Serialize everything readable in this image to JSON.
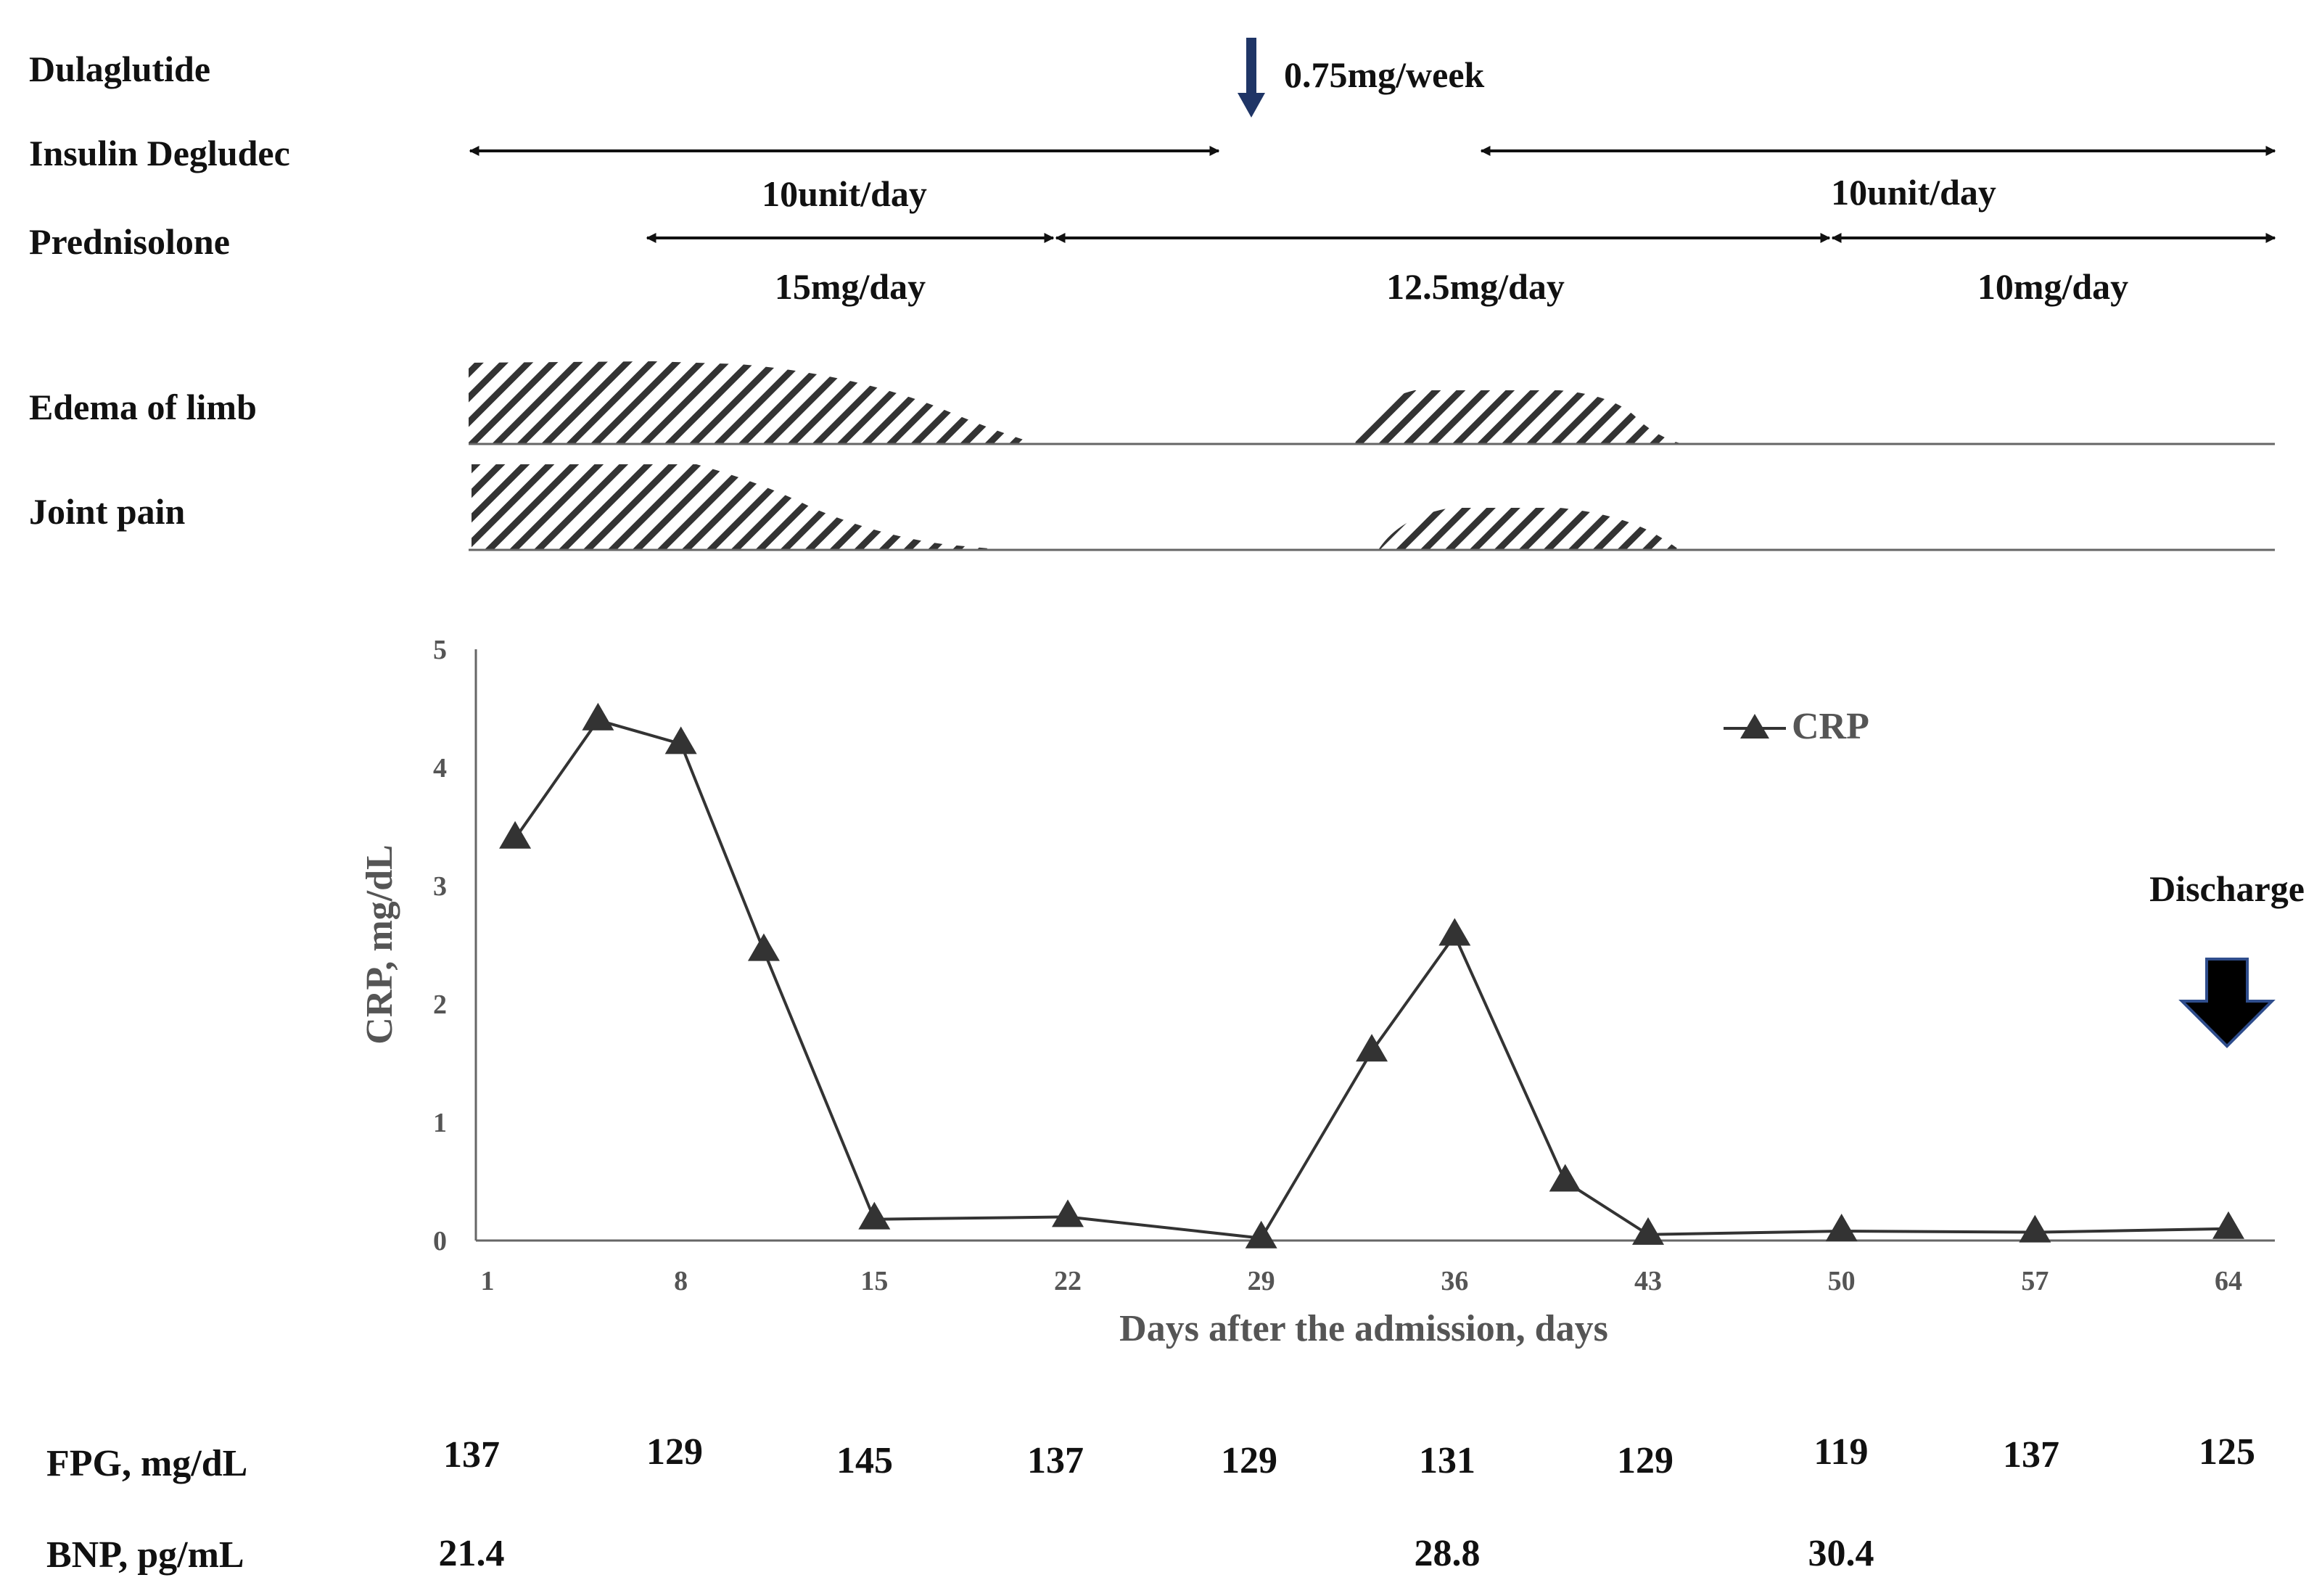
{
  "treatments": {
    "dulaglutide": {
      "label": "Dulaglutide",
      "dose": "0.75mg/week",
      "start_day": 29
    },
    "insulin_degludec": {
      "label": "Insulin Degludec",
      "periods": [
        {
          "from_day": 1,
          "to_day": 29,
          "dose": "10unit/day"
        },
        {
          "from_day": 40,
          "to_day": 64,
          "dose": "10unit/day"
        }
      ]
    },
    "prednisolone": {
      "label": "Prednisolone",
      "periods": [
        {
          "from_day": 8,
          "to_day": 22,
          "dose": "15mg/day"
        },
        {
          "from_day": 22,
          "to_day": 50,
          "dose": "12.5mg/day"
        },
        {
          "from_day": 50,
          "to_day": 64,
          "dose": "10mg/day"
        }
      ]
    }
  },
  "symptoms": {
    "edema": {
      "label": "Edema of limb"
    },
    "joint_pain": {
      "label": "Joint pain"
    }
  },
  "chart_data": {
    "type": "line",
    "title": "",
    "xlabel": "Days after the admission, days",
    "ylabel": "CRP, mg/dL",
    "xlim": [
      1,
      64
    ],
    "ylim": [
      0,
      5
    ],
    "x_ticks": [
      1,
      8,
      15,
      22,
      29,
      36,
      43,
      50,
      57,
      64
    ],
    "y_ticks": [
      0,
      1,
      2,
      3,
      4,
      5
    ],
    "legend_position": "top-right",
    "series": [
      {
        "name": "CRP",
        "marker": "triangle",
        "x": [
          2,
          5,
          8,
          11,
          15,
          22,
          29,
          33,
          36,
          40,
          43,
          50,
          57,
          64
        ],
        "y": [
          3.4,
          4.4,
          4.2,
          2.45,
          0.18,
          0.2,
          0.02,
          1.6,
          2.58,
          0.5,
          0.05,
          0.08,
          0.07,
          0.1
        ]
      }
    ],
    "annotations": [
      {
        "text": "Discharge",
        "day": 64
      }
    ]
  },
  "table": {
    "fpg": {
      "label": "FPG, mg/dL",
      "values": [
        "137",
        "129",
        "145",
        "137",
        "129",
        "131",
        "129",
        "119",
        "137",
        "125"
      ]
    },
    "bnp": {
      "label": "BNP, pg/mL",
      "values": [
        {
          "day": 1,
          "text": "21.4"
        },
        {
          "day": 36,
          "text": "28.8"
        },
        {
          "day": 50,
          "text": "30.4"
        }
      ]
    }
  },
  "colors": {
    "line": "#333333",
    "text": "#111111",
    "axis_text": "#555555",
    "dulaglutide_arrow": "#1f3566",
    "discharge_arrow": "#000000",
    "discharge_outline": "#2f4d8c",
    "hatch": "#333333"
  }
}
